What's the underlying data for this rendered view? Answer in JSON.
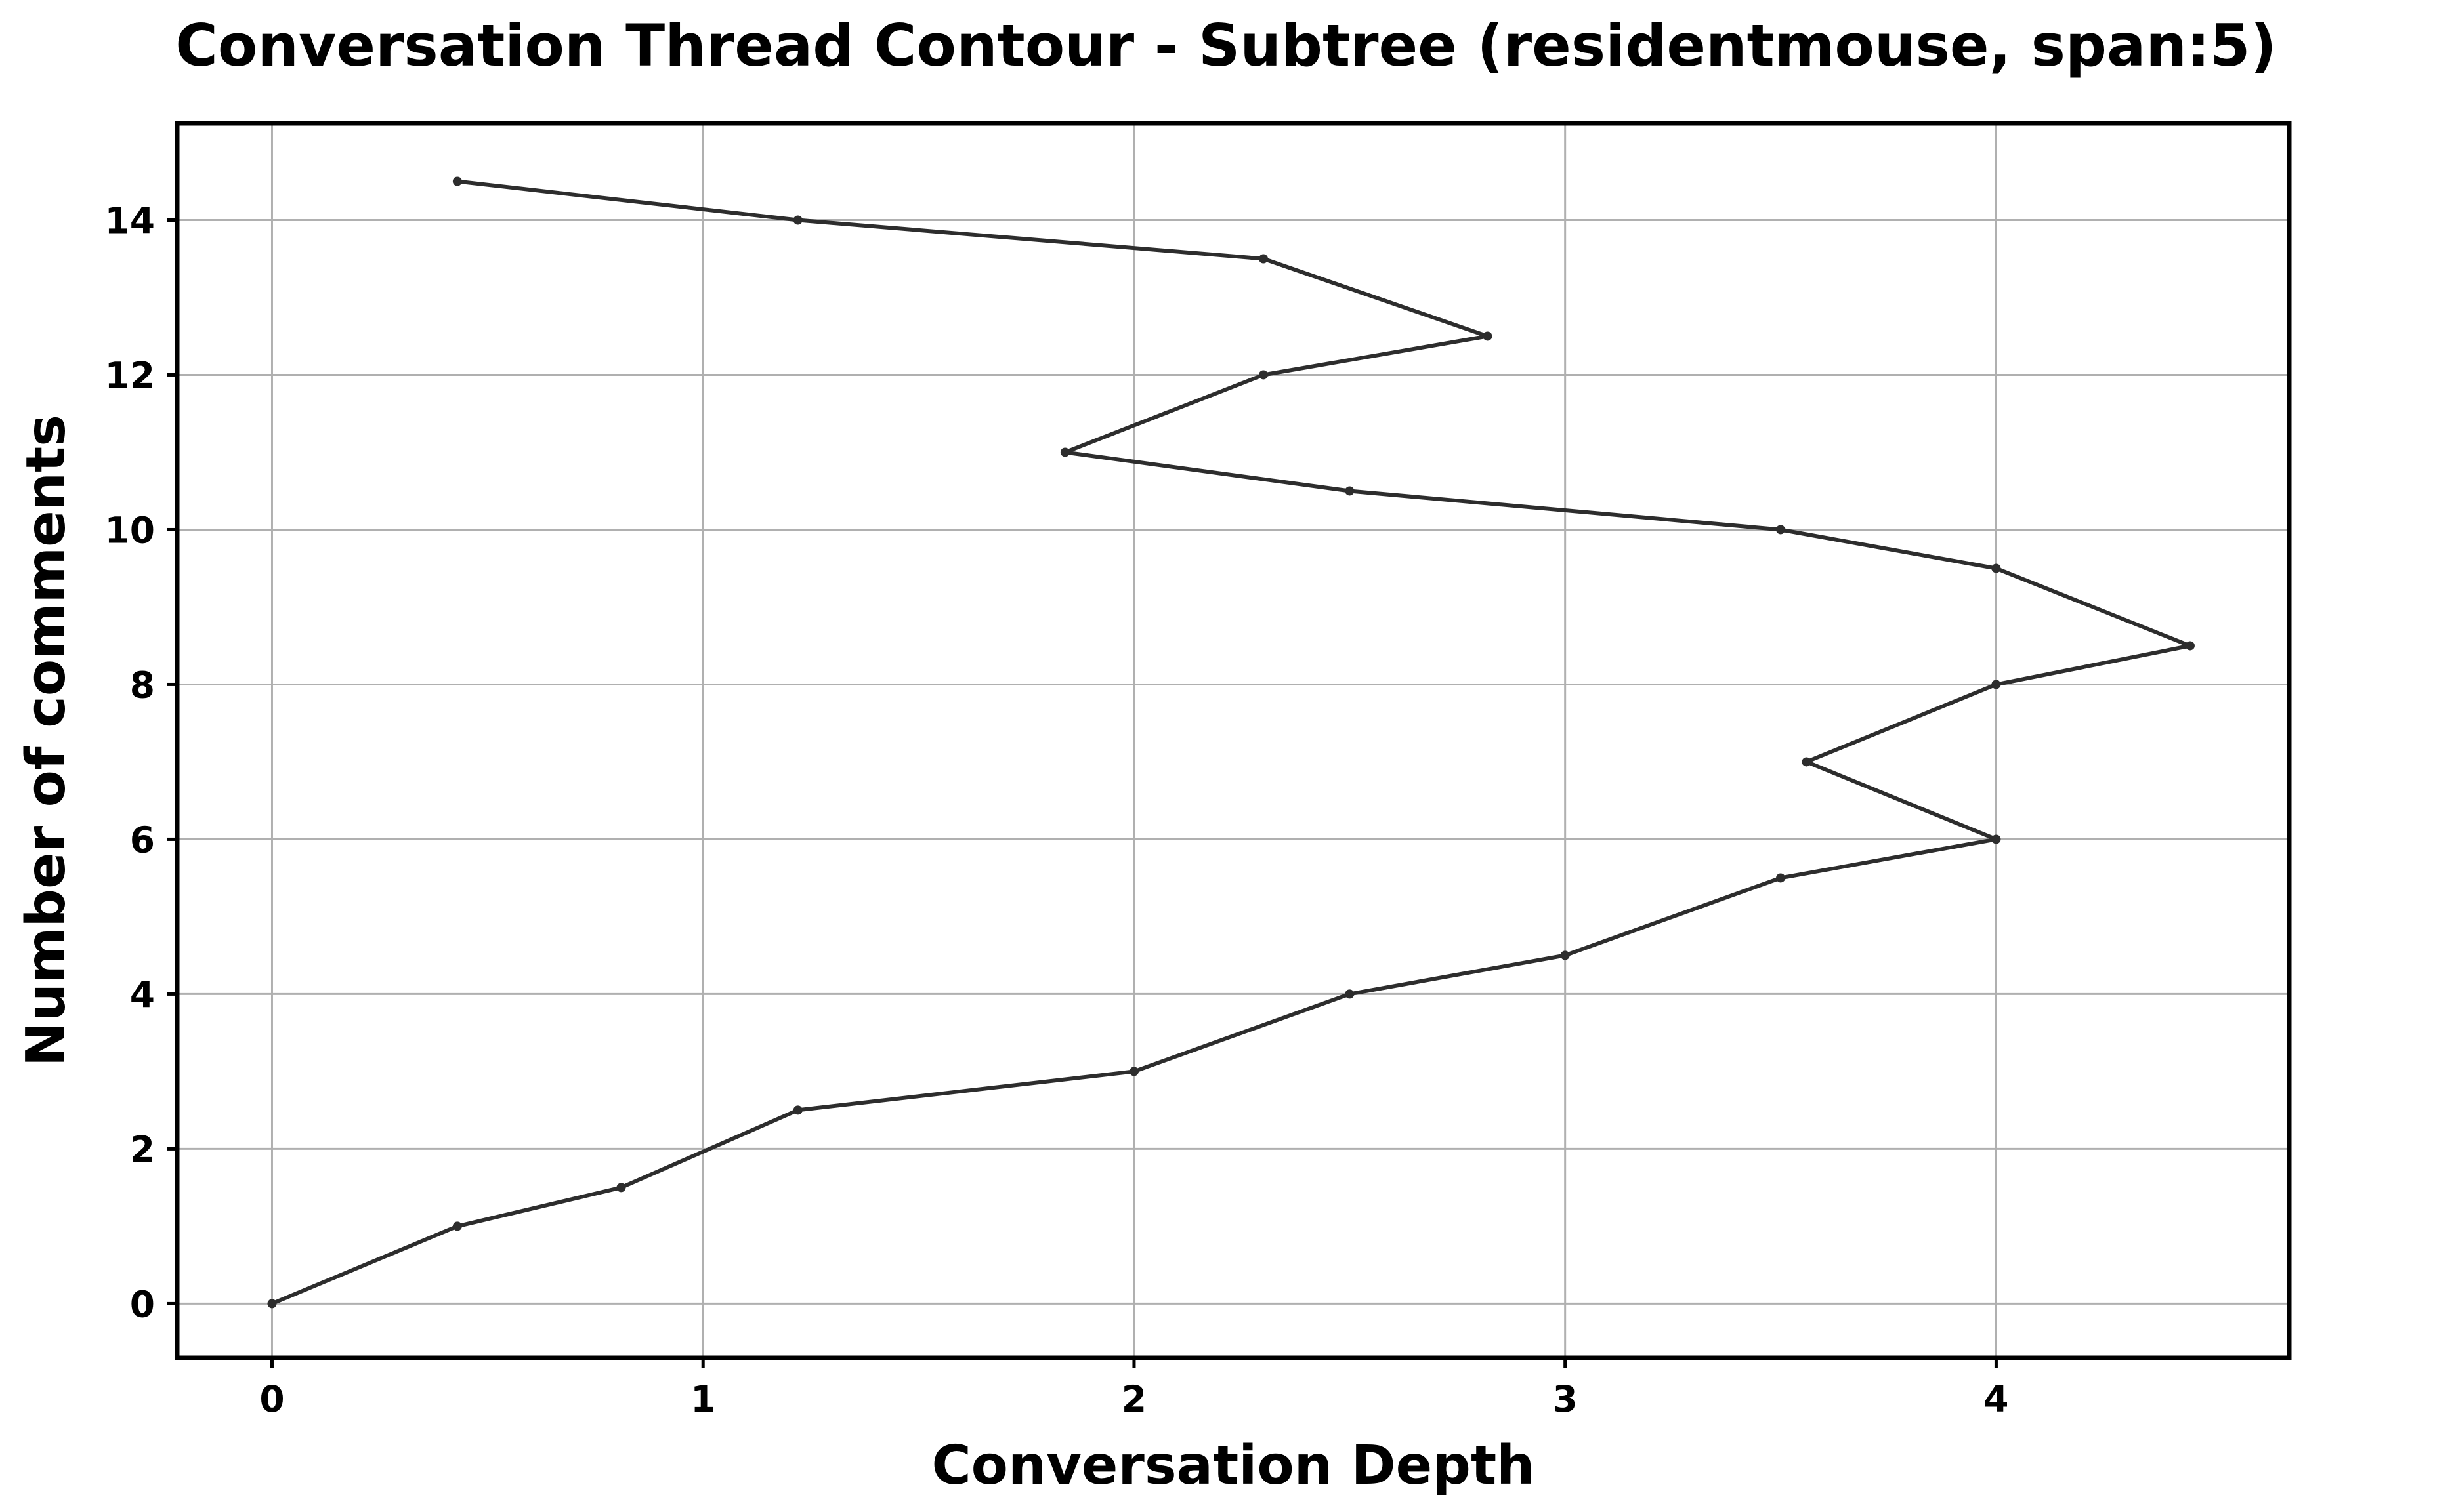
{
  "chart_data": {
    "type": "line",
    "title": "Conversation Thread Contour  - Subtree (residentmouse, span:5)",
    "xlabel": "Conversation Depth",
    "ylabel": "Number of comments",
    "xlim": [
      -0.22,
      4.68
    ],
    "ylim": [
      -0.7,
      15.25
    ],
    "x_ticks": [
      0,
      1,
      2,
      3,
      4
    ],
    "y_ticks": [
      0,
      2,
      4,
      6,
      8,
      10,
      12,
      14
    ],
    "grid": true,
    "legend": "none",
    "series": [
      {
        "color": "#2d2d2d",
        "points": [
          {
            "x": 0,
            "y": 0
          },
          {
            "x": 0.43,
            "y": 1
          },
          {
            "x": 0.81,
            "y": 1.5
          },
          {
            "x": 1.22,
            "y": 2.5
          },
          {
            "x": 2.0,
            "y": 3
          },
          {
            "x": 2.5,
            "y": 4
          },
          {
            "x": 3.0,
            "y": 4.5
          },
          {
            "x": 3.5,
            "y": 5.5
          },
          {
            "x": 4.0,
            "y": 6
          },
          {
            "x": 3.56,
            "y": 7
          },
          {
            "x": 4.0,
            "y": 8
          },
          {
            "x": 4.45,
            "y": 8.5
          },
          {
            "x": 4.0,
            "y": 9.5
          },
          {
            "x": 3.5,
            "y": 10
          },
          {
            "x": 2.5,
            "y": 10.5
          },
          {
            "x": 1.84,
            "y": 11
          },
          {
            "x": 2.3,
            "y": 12
          },
          {
            "x": 2.82,
            "y": 12.5
          },
          {
            "x": 2.3,
            "y": 13.5
          },
          {
            "x": 1.22,
            "y": 14
          },
          {
            "x": 0.43,
            "y": 14.5
          }
        ]
      }
    ]
  },
  "colors": {
    "line": "#2d2d2d",
    "grid": "#b0b0b0",
    "frame": "#000000",
    "background": "#ffffff"
  }
}
